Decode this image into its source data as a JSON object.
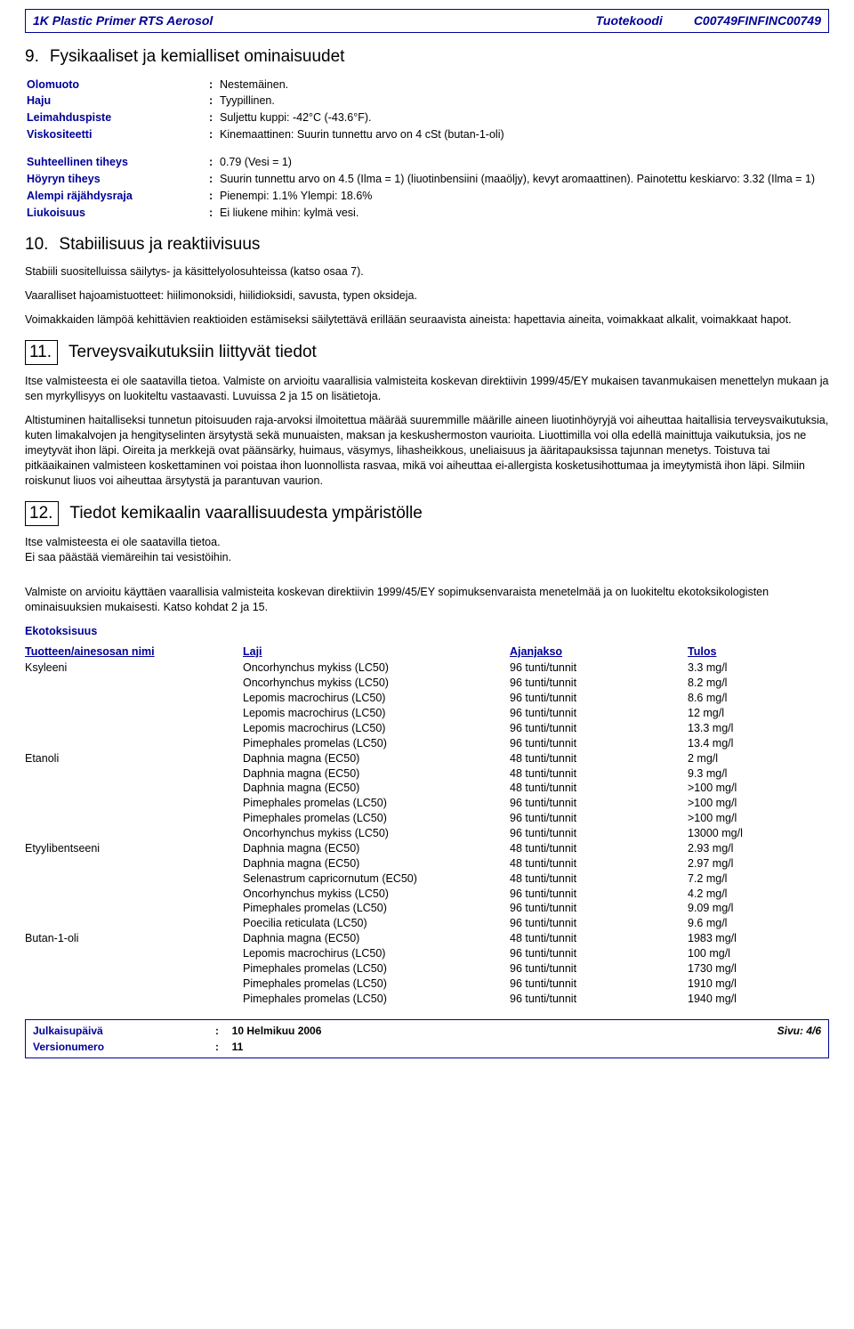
{
  "header": {
    "product": "1K Plastic Primer RTS Aerosol",
    "code_label": "Tuotekoodi",
    "code": "C00749FINFINC00749"
  },
  "section9": {
    "num": "9.",
    "title": "Fysikaaliset ja kemialliset ominaisuudet",
    "rows_a": [
      {
        "label": "Olomuoto",
        "value": "Nestemäinen."
      },
      {
        "label": "Haju",
        "value": "Tyypillinen."
      },
      {
        "label": "Leimahduspiste",
        "value": "Suljettu kuppi: -42°C (-43.6°F)."
      },
      {
        "label": "Viskositeetti",
        "value": "Kinemaattinen: Suurin tunnettu arvo on 4 cSt (butan-1-oli)"
      }
    ],
    "rows_b": [
      {
        "label": "Suhteellinen tiheys",
        "value": "0.79 (Vesi = 1)"
      },
      {
        "label": "Höyryn tiheys",
        "value": "Suurin tunnettu arvo on 4.5  (Ilma = 1)  (liuotinbensiini (maaöljy), kevyt aromaattinen). Painotettu keskiarvo: 3.32  (Ilma = 1)"
      },
      {
        "label": "Alempi räjähdysraja",
        "value": "Pienempi: 1.1%  Ylempi: 18.6%"
      },
      {
        "label": "Liukoisuus",
        "value": "Ei liukene mihin: kylmä vesi."
      }
    ]
  },
  "section10": {
    "num": "10.",
    "title": "Stabiilisuus ja reaktiivisuus",
    "p1": "Stabiili suositelluissa säilytys- ja käsittelyolosuhteissa (katso osaa 7).",
    "p2": "Vaaralliset hajoamistuotteet: hiilimonoksidi, hiilidioksidi, savusta, typen oksideja.",
    "p3": "Voimakkaiden lämpöä kehittävien reaktioiden estämiseksi säilytettävä erillään seuraavista aineista: hapettavia aineita, voimakkaat alkalit, voimakkaat hapot."
  },
  "section11": {
    "num": "11.",
    "title": "Terveysvaikutuksiin liittyvät tiedot",
    "p1": "Itse valmisteesta ei ole saatavilla tietoa. Valmiste on arvioitu vaarallisia valmisteita koskevan direktiivin 1999/45/EY mukaisen tavanmukaisen menettelyn mukaan ja sen myrkyllisyys on luokiteltu vastaavasti. Luvuissa 2 ja 15 on lisätietoja.",
    "p2": "Altistuminen haitalliseksi tunnetun pitoisuuden raja-arvoksi ilmoitettua määrää suuremmille määrille aineen liuotinhöyryjä voi aiheuttaa haitallisia terveysvaikutuksia, kuten limakalvojen ja hengityselinten ärsytystä sekä munuaisten, maksan ja keskushermoston vaurioita. Liuottimilla voi olla edellä mainittuja vaikutuksia, jos ne imeytyvät ihon läpi. Oireita ja merkkejä ovat päänsärky, huimaus, väsymys, lihasheikkous, uneliaisuus ja ääritapauksissa tajunnan menetys. Toistuva tai pitkäaikainen valmisteen koskettaminen voi poistaa ihon luonnollista rasvaa, mikä voi aiheuttaa ei-allergista kosketusihottumaa ja imeytymistä ihon läpi. Silmiin roiskunut liuos voi aiheuttaa ärsytystä ja parantuvan vaurion."
  },
  "section12": {
    "num": "12.",
    "title": "Tiedot kemikaalin vaarallisuudesta ympäristölle",
    "p1": "Itse valmisteesta ei ole saatavilla tietoa.",
    "p2": "Ei saa päästää viemäreihin tai vesistöihin.",
    "p3": "Valmiste on arvioitu käyttäen vaarallisia valmisteita koskevan direktiivin 1999/45/EY sopimuksenvaraista menetelmää ja on luokiteltu ekotoksikologisten ominaisuuksien mukaisesti. Katso kohdat 2 ja 15.",
    "etox_label": "Ekotoksisuus",
    "thead": {
      "c1": "Tuotteen/ainesosan nimi",
      "c2": "Laji",
      "c3": "Ajanjakso",
      "c4": "Tulos"
    },
    "rows": [
      {
        "c1": "Ksyleeni",
        "c2": "Oncorhynchus mykiss (LC50)",
        "c3": "96 tunti/tunnit",
        "c4": "3.3 mg/l"
      },
      {
        "c1": "",
        "c2": "Oncorhynchus mykiss (LC50)",
        "c3": "96 tunti/tunnit",
        "c4": "8.2 mg/l"
      },
      {
        "c1": "",
        "c2": "Lepomis macrochirus (LC50)",
        "c3": "96 tunti/tunnit",
        "c4": "8.6 mg/l"
      },
      {
        "c1": "",
        "c2": "Lepomis macrochirus (LC50)",
        "c3": "96 tunti/tunnit",
        "c4": "12 mg/l"
      },
      {
        "c1": "",
        "c2": "Lepomis macrochirus (LC50)",
        "c3": "96 tunti/tunnit",
        "c4": "13.3 mg/l"
      },
      {
        "c1": "",
        "c2": "Pimephales promelas (LC50)",
        "c3": "96 tunti/tunnit",
        "c4": "13.4 mg/l"
      },
      {
        "c1": "Etanoli",
        "c2": "Daphnia magna (EC50)",
        "c3": "48 tunti/tunnit",
        "c4": "2 mg/l"
      },
      {
        "c1": "",
        "c2": "Daphnia magna (EC50)",
        "c3": "48 tunti/tunnit",
        "c4": "9.3 mg/l"
      },
      {
        "c1": "",
        "c2": "Daphnia magna (EC50)",
        "c3": "48 tunti/tunnit",
        "c4": ">100 mg/l"
      },
      {
        "c1": "",
        "c2": "Pimephales promelas (LC50)",
        "c3": "96 tunti/tunnit",
        "c4": ">100 mg/l"
      },
      {
        "c1": "",
        "c2": "Pimephales promelas (LC50)",
        "c3": "96 tunti/tunnit",
        "c4": ">100 mg/l"
      },
      {
        "c1": "",
        "c2": "Oncorhynchus mykiss (LC50)",
        "c3": "96 tunti/tunnit",
        "c4": "13000 mg/l"
      },
      {
        "c1": "Etyylibentseeni",
        "c2": "Daphnia magna (EC50)",
        "c3": "48 tunti/tunnit",
        "c4": "2.93 mg/l"
      },
      {
        "c1": "",
        "c2": "Daphnia magna (EC50)",
        "c3": "48 tunti/tunnit",
        "c4": "2.97 mg/l"
      },
      {
        "c1": "",
        "c2": "Selenastrum capricornutum (EC50)",
        "c3": "48 tunti/tunnit",
        "c4": "7.2 mg/l"
      },
      {
        "c1": "",
        "c2": "Oncorhynchus mykiss (LC50)",
        "c3": "96 tunti/tunnit",
        "c4": "4.2 mg/l"
      },
      {
        "c1": "",
        "c2": "Pimephales promelas (LC50)",
        "c3": "96 tunti/tunnit",
        "c4": "9.09 mg/l"
      },
      {
        "c1": "",
        "c2": "Poecilia reticulata (LC50)",
        "c3": "96 tunti/tunnit",
        "c4": "9.6 mg/l"
      },
      {
        "c1": "Butan-1-oli",
        "c2": "Daphnia magna (EC50)",
        "c3": "48 tunti/tunnit",
        "c4": "1983 mg/l"
      },
      {
        "c1": "",
        "c2": "Lepomis macrochirus (LC50)",
        "c3": "96 tunti/tunnit",
        "c4": "100 mg/l"
      },
      {
        "c1": "",
        "c2": "Pimephales promelas (LC50)",
        "c3": "96 tunti/tunnit",
        "c4": "1730 mg/l"
      },
      {
        "c1": "",
        "c2": "Pimephales promelas (LC50)",
        "c3": "96 tunti/tunnit",
        "c4": "1910 mg/l"
      },
      {
        "c1": "",
        "c2": "Pimephales promelas (LC50)",
        "c3": "96 tunti/tunnit",
        "c4": "1940 mg/l"
      }
    ]
  },
  "footer": {
    "rows": [
      {
        "label": "Julkaisupäivä",
        "value": "10 Helmikuu 2006"
      },
      {
        "label": "Versionumero",
        "value": "11"
      }
    ],
    "page": "Sivu: 4/6"
  }
}
